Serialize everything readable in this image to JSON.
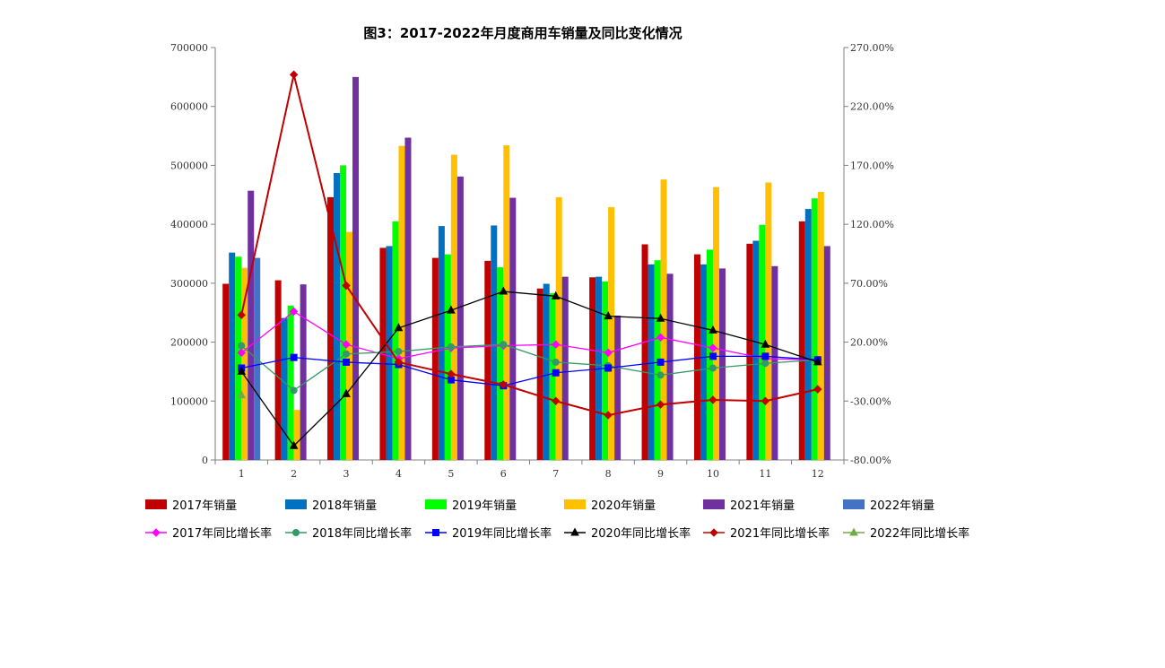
{
  "chart_data": {
    "type": "bar",
    "title": "图3：2017-2022年月度商用车销量及同比变化情况",
    "categories": [
      "1",
      "2",
      "3",
      "4",
      "5",
      "6",
      "7",
      "8",
      "9",
      "10",
      "11",
      "12"
    ],
    "y_left": {
      "ylim": [
        0,
        700000
      ],
      "ticks": [
        0,
        100000,
        200000,
        300000,
        400000,
        500000,
        600000,
        700000
      ],
      "tick_labels": [
        "0",
        "100000",
        "200000",
        "300000",
        "400000",
        "500000",
        "600000",
        "700000"
      ]
    },
    "y_right": {
      "ylim": [
        -80,
        270
      ],
      "ticks": [
        -80,
        -30,
        20,
        70,
        120,
        170,
        220,
        270
      ],
      "tick_labels": [
        "-80.00%",
        "-30.00%",
        "20.00%",
        "70.00%",
        "120.00%",
        "170.00%",
        "220.00%",
        "270.00%"
      ]
    },
    "bar_series": [
      {
        "name": "2017年销量",
        "color": "#C00000",
        "values": [
          299000,
          305000,
          446000,
          360000,
          343000,
          338000,
          291000,
          310000,
          366000,
          349000,
          367000,
          405000
        ]
      },
      {
        "name": "2018年销量",
        "color": "#0070C0",
        "values": [
          352000,
          241000,
          487000,
          363000,
          397000,
          398000,
          299000,
          311000,
          332000,
          332000,
          372000,
          426000
        ]
      },
      {
        "name": "2019年销量",
        "color": "#00FF00",
        "values": [
          345000,
          262000,
          500000,
          405000,
          349000,
          327000,
          283000,
          303000,
          339000,
          357000,
          399000,
          444000
        ]
      },
      {
        "name": "2020年销量",
        "color": "#FFC000",
        "values": [
          326000,
          85000,
          387000,
          533000,
          518000,
          534000,
          446000,
          429000,
          476000,
          463000,
          471000,
          455000
        ]
      },
      {
        "name": "2021年销量",
        "color": "#7030A0",
        "values": [
          457000,
          298000,
          650000,
          547000,
          481000,
          445000,
          311000,
          245000,
          316000,
          325000,
          329000,
          363000
        ]
      },
      {
        "name": "2022年销量",
        "color": "#4472C4",
        "values": [
          343000,
          null,
          null,
          null,
          null,
          null,
          null,
          null,
          null,
          null,
          null,
          null
        ]
      }
    ],
    "line_series": [
      {
        "name": "2017年同比增长率",
        "color": "#FF00FF",
        "marker": "diamond",
        "values": [
          11,
          46,
          18,
          6,
          15,
          17,
          18,
          11,
          24,
          15,
          6,
          5
        ]
      },
      {
        "name": "2018年同比增长率",
        "color": "#339966",
        "marker": "circle",
        "values": [
          17,
          -21,
          10,
          12,
          16,
          18,
          3,
          0,
          -8,
          -2,
          2,
          5
        ]
      },
      {
        "name": "2019年同比增长率",
        "color": "#0000FF",
        "marker": "square",
        "values": [
          -2,
          7,
          3,
          1,
          -12,
          -17,
          -6,
          -2,
          3,
          8,
          8,
          5
        ]
      },
      {
        "name": "2020年同比增长率",
        "color": "#000000",
        "marker": "triangle",
        "values": [
          -5,
          -68,
          -24,
          32,
          47,
          63,
          59,
          42,
          40,
          30,
          18,
          3
        ]
      },
      {
        "name": "2021年同比增长率",
        "color": "#C00000",
        "marker": "diamond",
        "values": [
          43,
          247,
          68,
          3,
          -7,
          -16,
          -30,
          -42,
          -33,
          -29,
          -30,
          -20
        ]
      },
      {
        "name": "2022年同比增长率",
        "color": "#70AD47",
        "marker": "triangle",
        "values": [
          -25,
          null,
          null,
          null,
          null,
          null,
          null,
          null,
          null,
          null,
          null,
          null
        ]
      }
    ],
    "legend_position": "bottom",
    "grid": false
  }
}
